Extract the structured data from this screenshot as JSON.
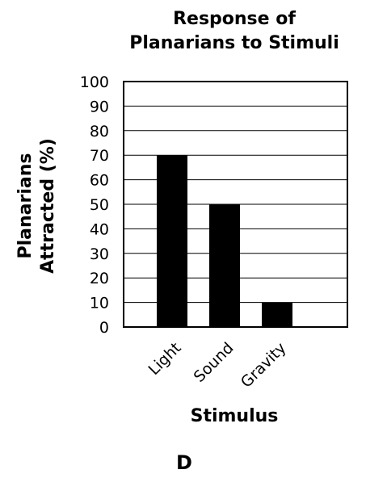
{
  "chart_data": {
    "type": "bar",
    "title_lines": [
      "Response of",
      "Planarians to Stimuli"
    ],
    "xlabel": "Stimulus",
    "ylabel_lines": [
      "Planarians",
      "Attracted (%)"
    ],
    "categories": [
      "Light",
      "Sound",
      "Gravity"
    ],
    "values": [
      70,
      50,
      10
    ],
    "ylim": [
      0,
      100
    ],
    "yticks": [
      0,
      10,
      20,
      30,
      40,
      50,
      60,
      70,
      80,
      90,
      100
    ],
    "grid": true,
    "bar_color": "#000000"
  },
  "panel_label": "D"
}
